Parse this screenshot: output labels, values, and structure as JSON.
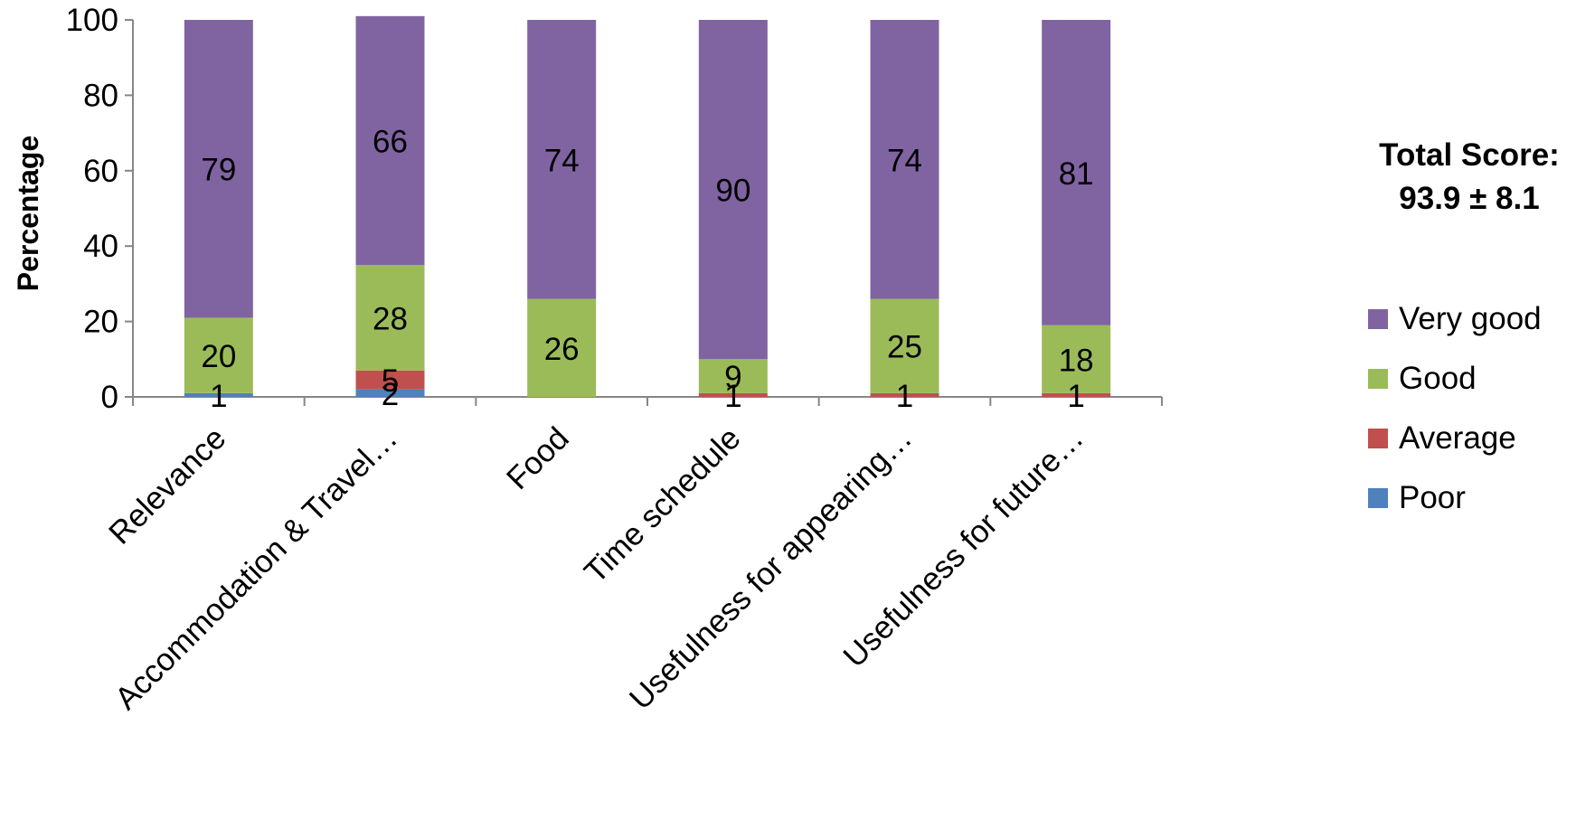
{
  "chart_data": {
    "type": "bar",
    "stacked": true,
    "categories": [
      "Relevance",
      "Accommodation & Travel…",
      "Food",
      "Time schedule",
      "Usefulness for appearing…",
      "Usefulness for future…"
    ],
    "series": [
      {
        "name": "Poor",
        "color": "#4F81BD",
        "values": [
          1,
          2,
          0,
          0,
          0,
          0
        ]
      },
      {
        "name": "Average",
        "color": "#C0504D",
        "values": [
          0,
          5,
          0,
          1,
          1,
          1
        ]
      },
      {
        "name": "Good",
        "color": "#9BBB59",
        "values": [
          20,
          28,
          26,
          9,
          25,
          18
        ]
      },
      {
        "name": "Very good",
        "color": "#8064A2",
        "values": [
          79,
          66,
          74,
          90,
          74,
          81
        ]
      }
    ],
    "data_labels": [
      {
        "category_index": 0,
        "labels": [
          "1",
          "",
          "20",
          "79"
        ]
      },
      {
        "category_index": 1,
        "labels": [
          "2",
          "5",
          "28",
          "66"
        ]
      },
      {
        "category_index": 2,
        "labels": [
          "",
          "",
          "26",
          "74"
        ]
      },
      {
        "category_index": 3,
        "labels": [
          "",
          "1",
          "9",
          "90"
        ]
      },
      {
        "category_index": 4,
        "labels": [
          "",
          "1",
          "25",
          "74"
        ]
      },
      {
        "category_index": 5,
        "labels": [
          "",
          "1",
          "18",
          "81"
        ]
      }
    ],
    "ylabel": "Percentage",
    "ylim": [
      0,
      100
    ],
    "yticks": [
      0,
      20,
      40,
      60,
      80,
      100
    ],
    "grid": false,
    "legend_position": "right",
    "legend_order": [
      "Very good",
      "Good",
      "Average",
      "Poor"
    ]
  },
  "annotation": {
    "line1": "Total Score:",
    "line2": "93.9 ± 8.1"
  }
}
